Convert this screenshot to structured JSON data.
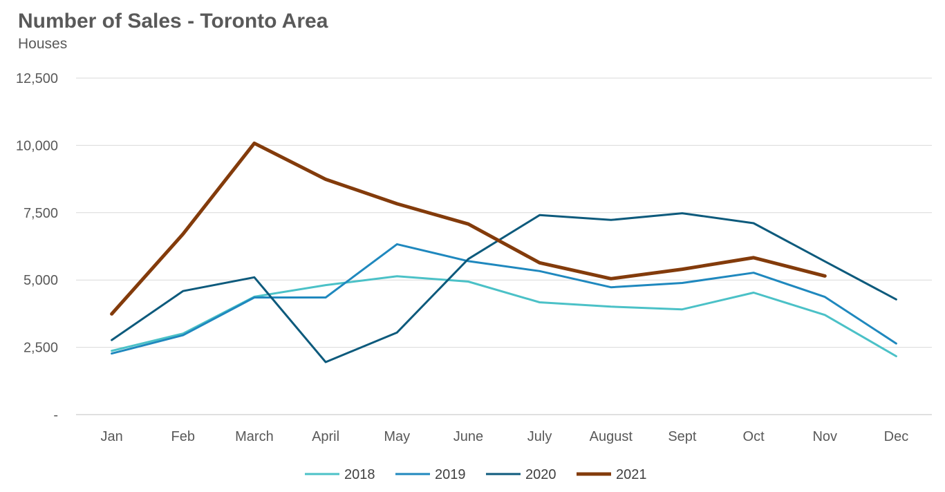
{
  "chart_data": {
    "type": "line",
    "title": "Number of Sales - Toronto Area",
    "subtitle": "Houses",
    "xlabel": "",
    "ylabel": "",
    "categories": [
      "Jan",
      "Feb",
      "March",
      "April",
      "May",
      "June",
      "July",
      "August",
      "Sept",
      "Oct",
      "Nov",
      "Dec"
    ],
    "ylim": [
      0,
      12500
    ],
    "yticks": [
      0,
      2500,
      5000,
      7500,
      10000,
      12500
    ],
    "ytick_labels": [
      "-",
      "2,500",
      "5,000",
      "7,500",
      "10,000",
      "12,500"
    ],
    "grid": true,
    "legend_position": "bottom",
    "series": [
      {
        "name": "2018",
        "color": "#4BC1C7",
        "width": 3,
        "values": [
          2370,
          3010,
          4380,
          4810,
          5140,
          4940,
          4170,
          4010,
          3910,
          4530,
          3700,
          2170
        ]
      },
      {
        "name": "2019",
        "color": "#1F88BE",
        "width": 3,
        "values": [
          2270,
          2950,
          4350,
          4350,
          6330,
          5700,
          5330,
          4730,
          4890,
          5270,
          4370,
          2640
        ]
      },
      {
        "name": "2020",
        "color": "#0D5A7C",
        "width": 3,
        "values": [
          2770,
          4590,
          5100,
          1950,
          3050,
          5780,
          7410,
          7230,
          7480,
          7110,
          5690,
          4280
        ]
      },
      {
        "name": "2021",
        "color": "#833B0B",
        "width": 5,
        "values": [
          3740,
          6710,
          10080,
          8740,
          7830,
          7080,
          5640,
          5050,
          5400,
          5830,
          5150,
          null
        ]
      }
    ]
  }
}
